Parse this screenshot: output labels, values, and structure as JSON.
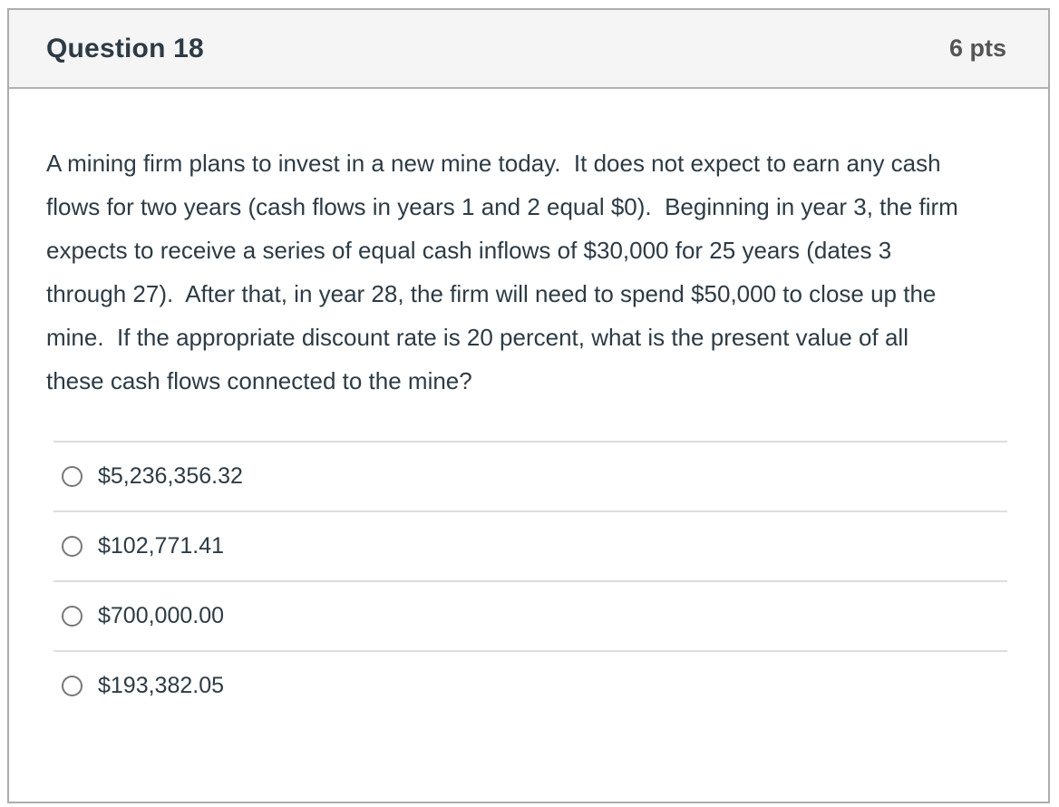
{
  "header": {
    "title": "Question 18",
    "points": "6 pts"
  },
  "question": {
    "text": "A mining firm plans to invest in a new mine today.  It does not expect to earn any cash flows for two years (cash flows in years 1 and 2 equal $0).  Beginning in year 3, the firm expects to receive a series of equal cash inflows of $30,000 for 25 years (dates 3 through 27).  After that, in year 28, the firm will need to spend $50,000 to close up the mine.  If the appropriate discount rate is 20 percent, what is the present value of all these cash flows connected to the mine?"
  },
  "options": [
    {
      "label": "$5,236,356.32"
    },
    {
      "label": "$102,771.41"
    },
    {
      "label": "$700,000.00"
    },
    {
      "label": "$193,382.05"
    }
  ],
  "colors": {
    "card_border": "#adadad",
    "header_background": "#f5f5f5",
    "title_text": "#2d3b45",
    "points_text": "#555555",
    "body_text": "#2d3b45",
    "divider": "#dddddd",
    "radio_border": "#777777"
  }
}
